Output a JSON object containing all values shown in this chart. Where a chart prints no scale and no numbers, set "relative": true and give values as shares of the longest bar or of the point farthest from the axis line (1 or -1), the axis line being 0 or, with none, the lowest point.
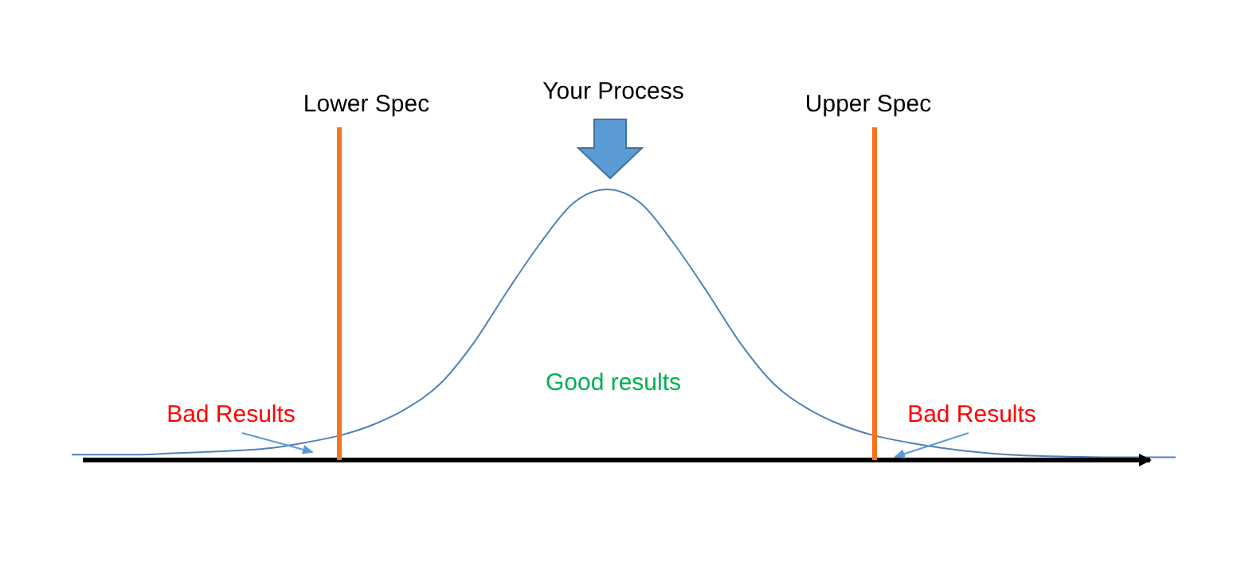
{
  "chart_data": {
    "type": "line",
    "relative": true,
    "categories": [
      null,
      null,
      null,
      null,
      null,
      null,
      null,
      null,
      null,
      null,
      null,
      null,
      null,
      null,
      null,
      null,
      null,
      null,
      null,
      null,
      null,
      null,
      null,
      null,
      null,
      null,
      null,
      null,
      null,
      null,
      null,
      null,
      null,
      null
    ],
    "series": [
      {
        "color": "#4f81b9",
        "values": [
          0.02,
          0.02,
          0.02,
          0.025,
          0.03,
          0.035,
          0.045,
          0.065,
          0.09,
          0.13,
          0.19,
          0.28,
          0.43,
          0.62,
          0.8,
          0.95,
          1.0,
          0.95,
          0.8,
          0.62,
          0.43,
          0.28,
          0.19,
          0.13,
          0.09,
          0.065,
          0.045,
          0.03,
          0.02,
          0.015,
          0.012,
          0.01,
          0.01,
          0.01
        ]
      }
    ],
    "annotations": [
      "Your Process",
      "Good results",
      "Bad Results",
      "Bad Results",
      "Lower Spec",
      "Upper Spec"
    ],
    "grid": false,
    "marker": "none",
    "line_style": "solid"
  }
}
